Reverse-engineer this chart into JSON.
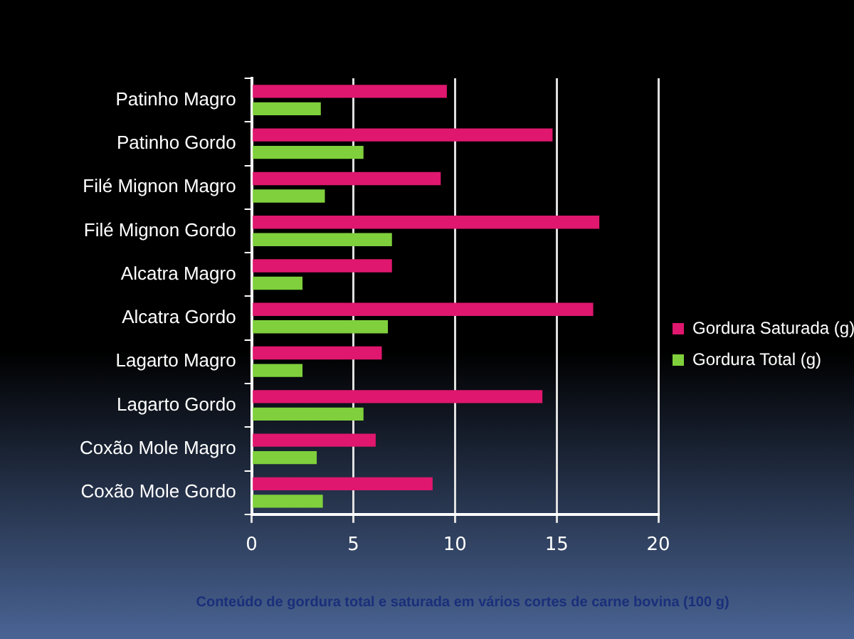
{
  "chart_data": {
    "type": "bar",
    "orientation": "horizontal",
    "title": "Conteúdo de gordura total e saturada em vários cortes de carne bovina (100 g)",
    "categories": [
      "Patinho Magro",
      "Patinho Gordo",
      "Filé Mignon Magro",
      "Filé Mignon Gordo",
      "Alcatra Magro",
      "Alcatra Gordo",
      "Lagarto Magro",
      "Lagarto Gordo",
      "Coxão Mole Magro",
      "Coxão Mole Gordo"
    ],
    "series": [
      {
        "name": "Gordura Saturada (g)",
        "color": "#e0176e",
        "values": [
          9.6,
          14.8,
          9.3,
          17.1,
          6.9,
          16.8,
          6.4,
          14.3,
          6.1,
          8.9
        ]
      },
      {
        "name": "Gordura Total (g)",
        "color": "#7fd03c",
        "values": [
          3.4,
          5.5,
          3.6,
          6.9,
          2.5,
          6.7,
          2.5,
          5.5,
          3.2,
          3.5
        ]
      }
    ],
    "xlim": [
      0,
      20
    ],
    "xticks": [
      0,
      5,
      10,
      15,
      20
    ],
    "grid": "x",
    "legend": "right"
  }
}
